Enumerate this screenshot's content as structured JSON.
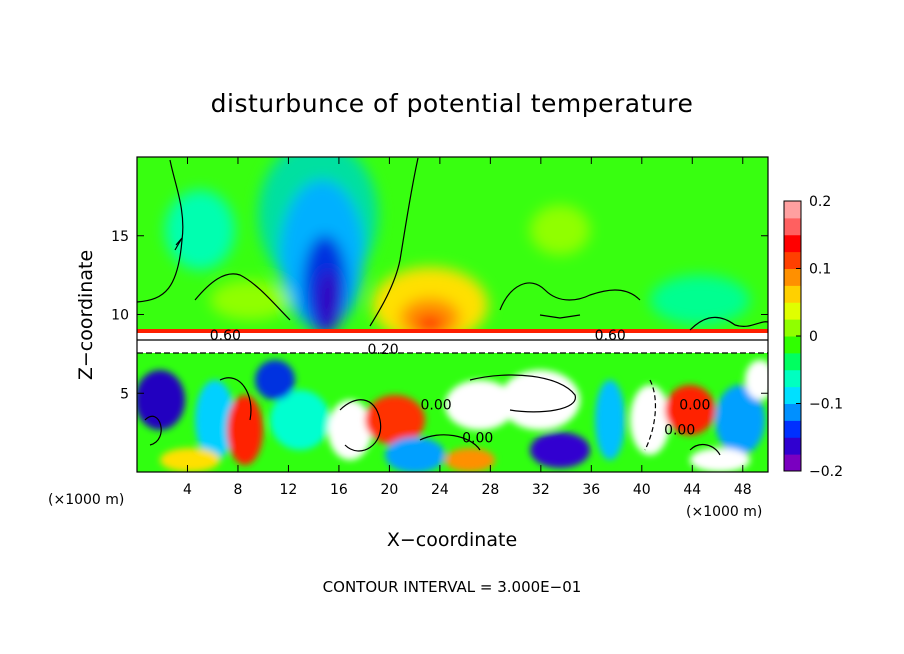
{
  "chart_data": {
    "type": "heatmap",
    "title": "disturbunce of potential temperature",
    "xlabel": "X−coordinate",
    "ylabel": "Z−coordinate",
    "x_unit_left": "(×1000 m)",
    "x_unit_right": "(×1000 m)",
    "xlim": [
      0,
      50
    ],
    "ylim": [
      0,
      20
    ],
    "x_ticks": [
      4,
      8,
      12,
      16,
      20,
      24,
      28,
      32,
      36,
      40,
      44,
      48
    ],
    "y_ticks": [
      5,
      10,
      15
    ],
    "colorbar": {
      "min": -0.2,
      "max": 0.2,
      "ticks": [
        {
          "value": 0.2,
          "label": "0.2"
        },
        {
          "value": 0.1,
          "label": "0.1"
        },
        {
          "value": 0,
          "label": "0"
        },
        {
          "value": -0.1,
          "label": "−0.1"
        },
        {
          "value": -0.2,
          "label": "−0.2"
        }
      ],
      "colors": [
        "#7a00c0",
        "#3000d0",
        "#0030ff",
        "#0090ff",
        "#00e0ff",
        "#00ffc0",
        "#00ff60",
        "#30ff00",
        "#90ff00",
        "#e0ff00",
        "#ffd000",
        "#ff9000",
        "#ff4000",
        "#ff0000",
        "#ff6060",
        "#ffa0a0"
      ]
    },
    "contour_labels": [
      {
        "text": "0.60",
        "x": 7,
        "z": 8.7
      },
      {
        "text": "0.60",
        "x": 37.5,
        "z": 8.7
      },
      {
        "text": "0.20",
        "x": 19.5,
        "z": 7.8
      },
      {
        "text": "0.00",
        "x": 23.7,
        "z": 4.3
      },
      {
        "text": "0.00",
        "x": 27,
        "z": 2.2
      },
      {
        "text": "0.00",
        "x": 44.2,
        "z": 4.3
      },
      {
        "text": "0.00",
        "x": 43,
        "z": 2.7
      }
    ],
    "footer": "CONTOUR INTERVAL = 3.000E−01"
  }
}
